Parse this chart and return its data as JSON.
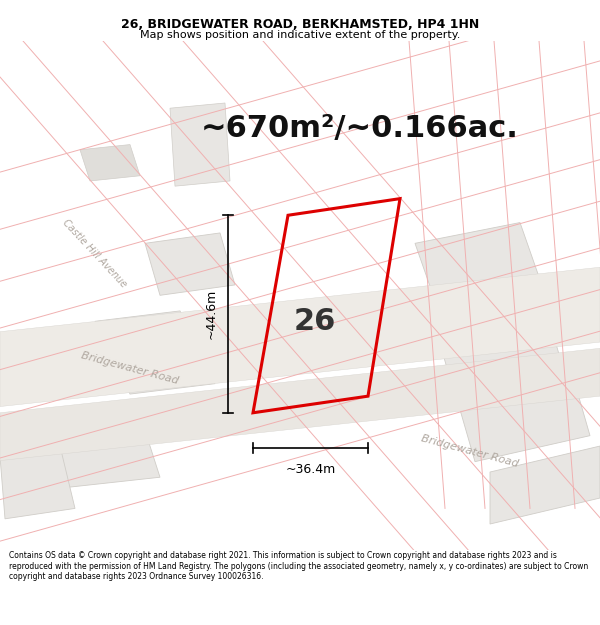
{
  "title": "26, BRIDGEWATER ROAD, BERKHAMSTED, HP4 1HN",
  "subtitle": "Map shows position and indicative extent of the property.",
  "area_text": "~670m²/~0.166ac.",
  "label_26": "26",
  "dim_vertical": "~44.6m",
  "dim_horizontal": "~36.4m",
  "footer": "Contains OS data © Crown copyright and database right 2021. This information is subject to Crown copyright and database rights 2023 and is reproduced with the permission of HM Land Registry. The polygons (including the associated geometry, namely x, y co-ordinates) are subject to Crown copyright and database rights 2023 Ordnance Survey 100026316.",
  "bg_color": "#ffffff",
  "map_bg": "#f7f6f4",
  "block_color": "#e8e6e3",
  "block_edge": "#d0cdc8",
  "road_color": "#edeae5",
  "line_color_faint": "#f0b0b0",
  "plot_outline_color": "#dd0000",
  "title_color": "#000000",
  "footer_color": "#000000",
  "dim_color": "#000000",
  "street_color": "#b0a8a0",
  "area_fontsize": 22,
  "label_fontsize": 22,
  "dim_fontsize": 9,
  "title_fontsize": 9,
  "subtitle_fontsize": 8,
  "footer_fontsize": 5.5
}
